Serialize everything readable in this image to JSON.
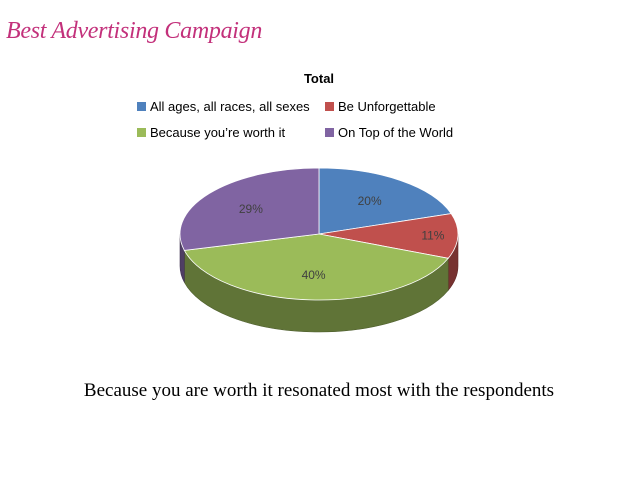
{
  "slide": {
    "title": "Best Advertising Campaign",
    "caption": "Because you are worth it resonated most with the respondents"
  },
  "chart_data": {
    "type": "pie",
    "title": "Total",
    "categories": [
      "All ages, all races, all sexes",
      "Be Unforgettable",
      "Because you’re worth it",
      "On Top of the World"
    ],
    "values": [
      20,
      11,
      40,
      29
    ],
    "labels": [
      "20%",
      "11%",
      "40%",
      "29%"
    ],
    "colors": [
      "#4f81bd",
      "#c0504d",
      "#9bbb59",
      "#8064a2"
    ],
    "legend_position": "top",
    "style": "3d"
  }
}
